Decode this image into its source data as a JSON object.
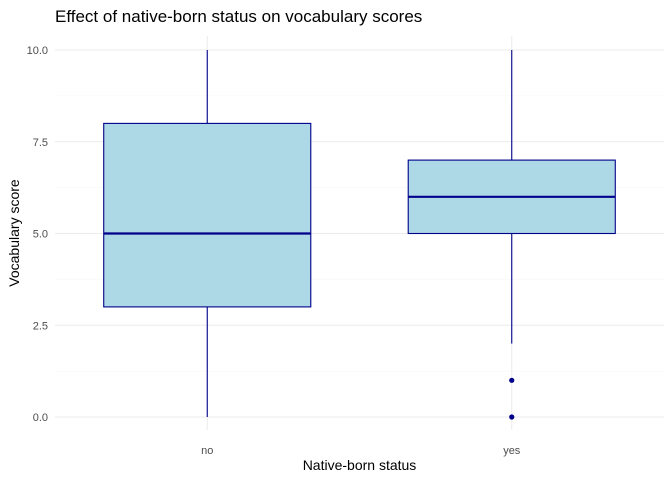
{
  "chart_data": {
    "type": "boxplot",
    "title": "Effect of native-born status on vocabulary scores",
    "xlabel": "Native-born status",
    "ylabel": "Vocabulary score",
    "categories": [
      "no",
      "yes"
    ],
    "ylim": [
      0,
      10
    ],
    "y_ticks": [
      0,
      2.5,
      5,
      7.5,
      10
    ],
    "y_tick_labels": [
      "0.0",
      "2.5",
      "5.0",
      "7.5",
      "10.0"
    ],
    "grid": true,
    "boxes": [
      {
        "category": "no",
        "min": 0,
        "q1": 3,
        "median": 5,
        "q3": 8,
        "max": 10,
        "outliers": []
      },
      {
        "category": "yes",
        "min": 2,
        "q1": 5,
        "median": 6,
        "q3": 7,
        "max": 10,
        "outliers": [
          1,
          0
        ]
      }
    ],
    "colors": {
      "box_fill": "#add8e6",
      "box_line": "#00008b",
      "grid_major": "#ebebeb",
      "grid_minor": "#f5f5f5"
    }
  }
}
